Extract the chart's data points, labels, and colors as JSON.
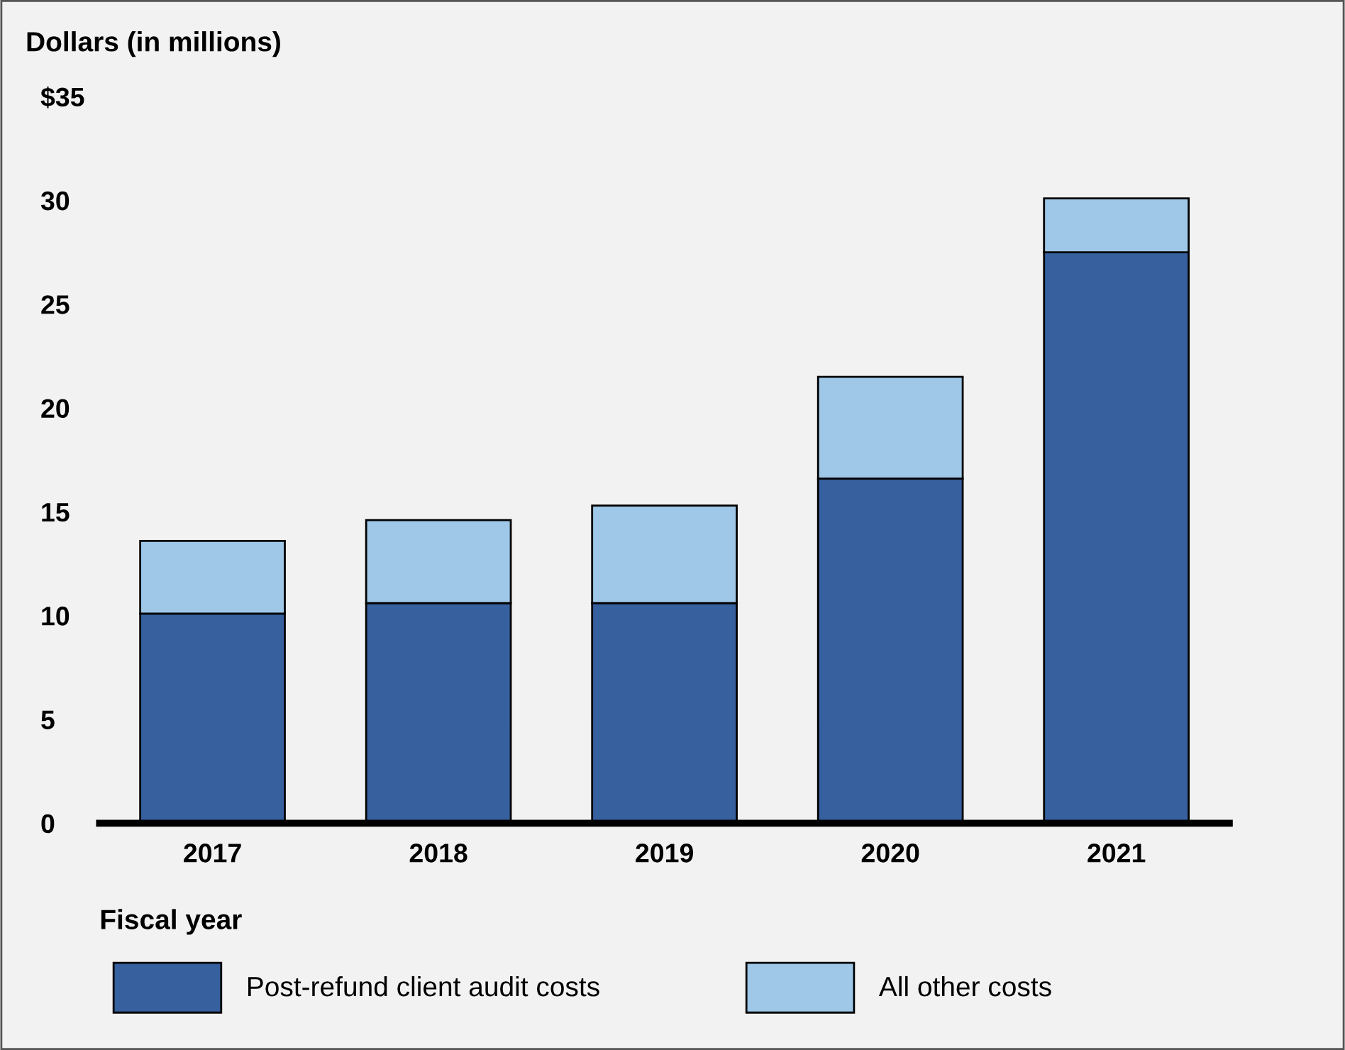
{
  "chart_data": {
    "type": "bar",
    "stacked": true,
    "ylabel": "Dollars (in millions)",
    "xlabel": "Fiscal year",
    "categories": [
      "2017",
      "2018",
      "2019",
      "2020",
      "2021"
    ],
    "series": [
      {
        "name": "Post-refund client audit costs",
        "color": "#36609e",
        "values": [
          10.1,
          10.6,
          10.6,
          16.6,
          27.5
        ]
      },
      {
        "name": "All other costs",
        "color": "#9fc8e8",
        "values": [
          3.5,
          4.0,
          4.7,
          4.9,
          2.6
        ]
      }
    ],
    "ylim": [
      0,
      35
    ],
    "yticks": [
      0,
      5,
      10,
      15,
      20,
      25,
      {
        "value": 35,
        "label": "$35"
      },
      30
    ],
    "grid": false,
    "legend": "bottom"
  }
}
